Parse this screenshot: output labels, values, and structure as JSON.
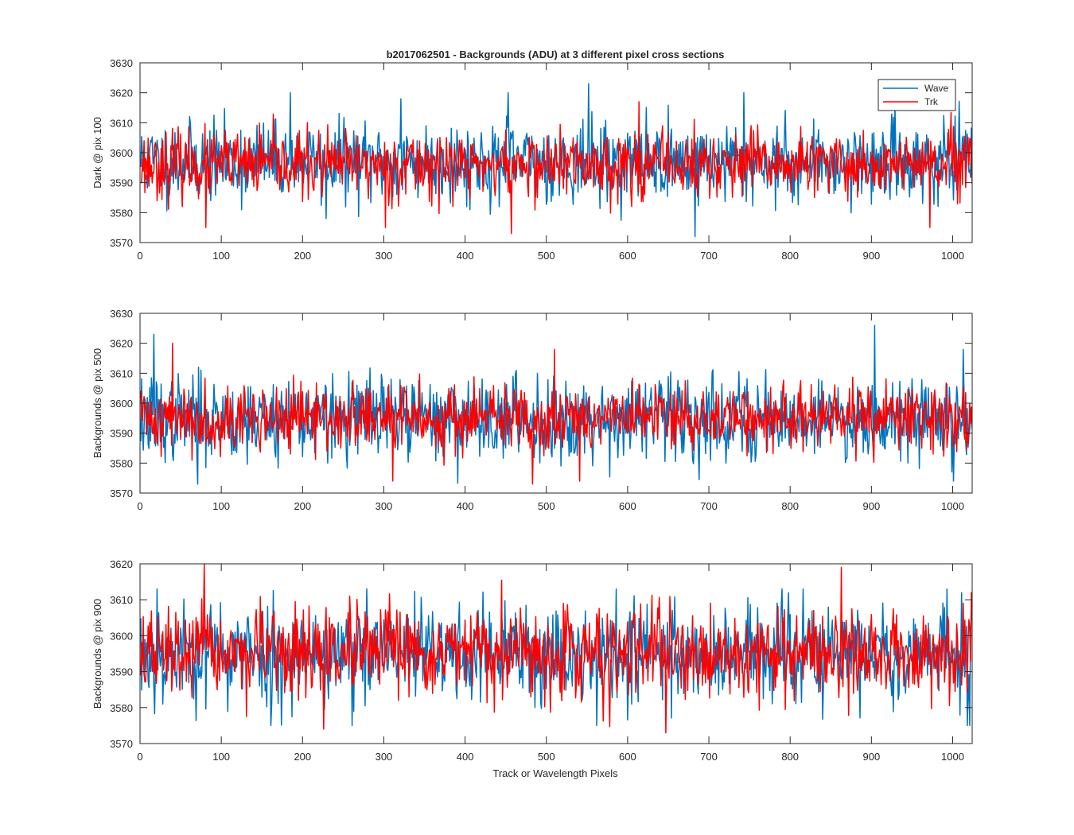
{
  "figure": {
    "title": "b2017062501 - Backgrounds (ADU) at 3 different pixel cross sections",
    "xlabel": "Track or Wavelength Pixels"
  },
  "colors": {
    "Wave": "#0072BD",
    "Trk": "#FF0000",
    "axes": "#262626"
  },
  "chart_data": [
    {
      "type": "line",
      "title": "b2017062501 - Backgrounds (ADU) at 3 different pixel cross sections",
      "xlabel": "",
      "ylabel": "Dark @ pix 100",
      "xlim": [
        0,
        1024
      ],
      "ylim": [
        3570,
        3630
      ],
      "xticks": [
        0,
        100,
        200,
        300,
        400,
        500,
        600,
        700,
        800,
        900,
        1000
      ],
      "yticks": [
        3570,
        3580,
        3590,
        3600,
        3610,
        3620,
        3630
      ],
      "legend": {
        "placement": "top-right",
        "entries": [
          "Wave",
          "Trk"
        ]
      },
      "grid": false,
      "series": [
        {
          "name": "Wave",
          "color": "#0072BD",
          "n_points": 1024,
          "mean": 3597,
          "std": 6.5,
          "min": 3572,
          "max": 3623,
          "seed": 11,
          "peaks": [
            [
              184,
              3620
            ],
            [
              320,
              3618
            ],
            [
              452,
              3620
            ],
            [
              551,
              3623
            ],
            [
              742,
              3620
            ],
            [
              682,
              3572
            ],
            [
              228,
              3578
            ]
          ]
        },
        {
          "name": "Trk",
          "color": "#FF0000",
          "n_points": 1024,
          "mean": 3596,
          "std": 5.5,
          "min": 3573,
          "max": 3617,
          "seed": 23,
          "peaks": [
            [
              456,
              3573
            ],
            [
              613,
              3617
            ],
            [
              80,
              3575
            ],
            [
              971,
              3575
            ],
            [
              301,
              3575
            ]
          ]
        }
      ]
    },
    {
      "type": "line",
      "title": "",
      "xlabel": "",
      "ylabel": "Backgrounds @ pix 500",
      "xlim": [
        0,
        1024
      ],
      "ylim": [
        3570,
        3630
      ],
      "xticks": [
        0,
        100,
        200,
        300,
        400,
        500,
        600,
        700,
        800,
        900,
        1000
      ],
      "yticks": [
        3570,
        3580,
        3590,
        3600,
        3610,
        3620,
        3630
      ],
      "grid": false,
      "series": [
        {
          "name": "Wave",
          "color": "#0072BD",
          "n_points": 1024,
          "mean": 3595,
          "std": 7,
          "min": 3573,
          "max": 3626,
          "seed": 37,
          "peaks": [
            [
              16,
              3623
            ],
            [
              903,
              3626
            ],
            [
              1000,
              3574
            ],
            [
              70,
              3573
            ],
            [
              1012,
              3618
            ]
          ]
        },
        {
          "name": "Trk",
          "color": "#FF0000",
          "n_points": 1024,
          "mean": 3595,
          "std": 5.5,
          "min": 3573,
          "max": 3620,
          "seed": 41,
          "peaks": [
            [
              39,
              3620
            ],
            [
              482,
              3573
            ],
            [
              509,
              3618
            ],
            [
              310,
              3574
            ],
            [
              540,
              3574
            ]
          ]
        }
      ]
    },
    {
      "type": "line",
      "title": "",
      "xlabel": "Track or Wavelength Pixels",
      "ylabel": "Backgrounds @ pix 900",
      "xlim": [
        0,
        1024
      ],
      "ylim": [
        3570,
        3620
      ],
      "xticks": [
        0,
        100,
        200,
        300,
        400,
        500,
        600,
        700,
        800,
        900,
        1000
      ],
      "yticks": [
        3570,
        3580,
        3590,
        3600,
        3610,
        3620
      ],
      "grid": false,
      "series": [
        {
          "name": "Wave",
          "color": "#0072BD",
          "n_points": 1024,
          "mean": 3595,
          "std": 7,
          "min": 3575,
          "max": 3613,
          "seed": 53,
          "peaks": [
            [
              160,
              3575
            ],
            [
              260,
              3575
            ],
            [
              1017,
              3575
            ],
            [
              20,
              3613
            ]
          ]
        },
        {
          "name": "Trk",
          "color": "#FF0000",
          "n_points": 1024,
          "mean": 3595,
          "std": 6,
          "min": 3573,
          "max": 3620,
          "seed": 67,
          "peaks": [
            [
              78,
              3620
            ],
            [
              862,
              3619
            ],
            [
              225,
              3574
            ],
            [
              646,
              3573
            ],
            [
              1022,
              3612
            ]
          ]
        }
      ]
    }
  ]
}
